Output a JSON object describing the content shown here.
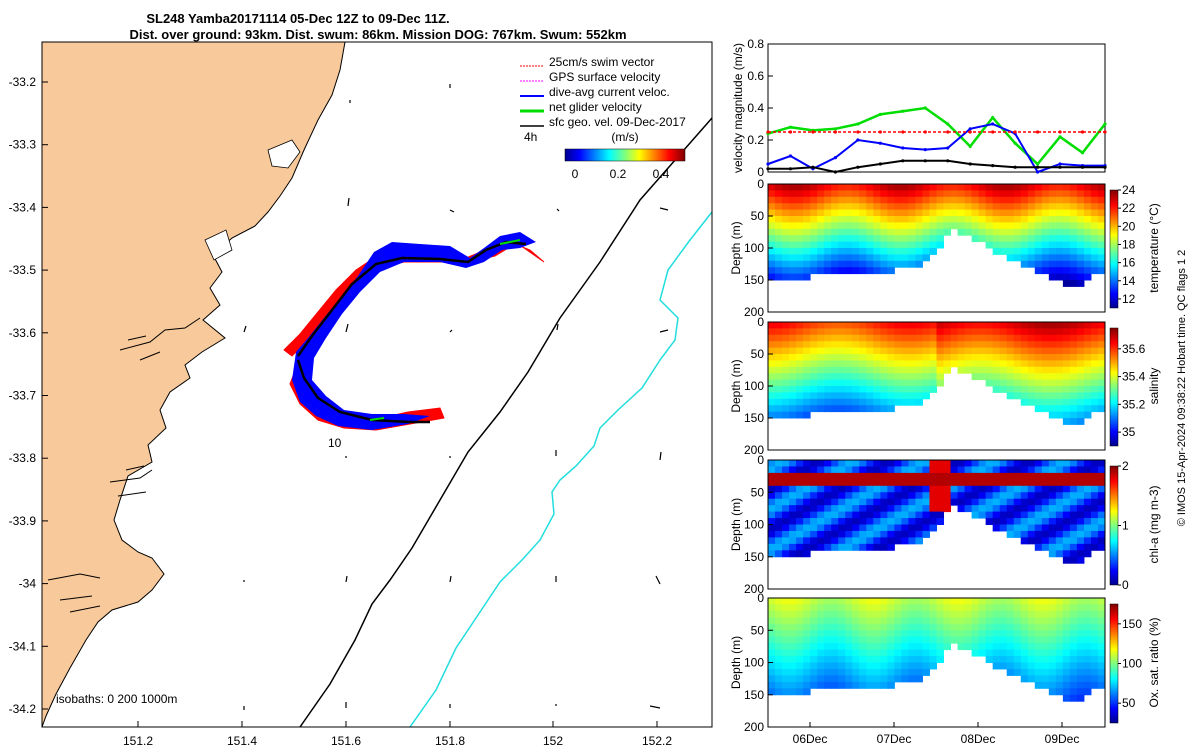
{
  "title_line1": "SL248 Yamba20171114 05-Dec 12Z to 09-Dec 11Z.",
  "title_line2": "Dist. over ground: 93km. Dist. swum: 86km. Mission DOG: 767km. Swum: 552km",
  "legend": {
    "items": [
      {
        "label": "25cm/s swim vector",
        "color": "#ff0000"
      },
      {
        "label": "GPS surface velocity",
        "color": "#ff00ff"
      },
      {
        "label": "dive-avg current veloc.",
        "color": "#0000ff"
      },
      {
        "label": "net glider velocity",
        "color": "#00dd00"
      },
      {
        "label": "sfc geo. vel. 09-Dec-2017",
        "color": "#000000"
      }
    ],
    "time_label": "4h"
  },
  "colorbar": {
    "label": "(m/s)",
    "ticks": [
      "0",
      "0.2",
      "0.4"
    ]
  },
  "map": {
    "xticks": [
      "151.2",
      "151.4",
      "151.6",
      "151.8",
      "152",
      "152.2"
    ],
    "yticks": [
      "-33.2",
      "-33.3",
      "-33.4",
      "-33.5",
      "-33.6",
      "-33.7",
      "-33.8",
      "-33.9",
      "-34",
      "-34.1",
      "-34.2"
    ],
    "track_label": "10",
    "isobaths_label": "isobaths: 0   200  1000m",
    "colors": {
      "land": "#f8c99a",
      "isobath_200": "#000000",
      "isobath_1000": "#22dddd"
    }
  },
  "chart_data": [
    {
      "type": "line",
      "title": "",
      "ylabel": "velocity magnitude (m/s)",
      "ylim": [
        0,
        0.8
      ],
      "yticks": [
        "0",
        "0.2",
        "0.4",
        "0.6",
        "0.8"
      ],
      "x": [
        0,
        0.25,
        0.5,
        0.75,
        1,
        1.25,
        1.5,
        1.75,
        2,
        2.25,
        2.5,
        2.75,
        3,
        3.25,
        3.5,
        3.75
      ],
      "series": [
        {
          "name": "net glider velocity",
          "values": [
            0.24,
            0.28,
            0.26,
            0.27,
            0.3,
            0.36,
            0.38,
            0.4,
            0.3,
            0.16,
            0.34,
            0.18,
            0.05,
            0.22,
            0.12,
            0.3
          ]
        },
        {
          "name": "dive-avg current veloc.",
          "values": [
            0.05,
            0.1,
            0.02,
            0.09,
            0.2,
            0.18,
            0.15,
            0.14,
            0.15,
            0.27,
            0.3,
            0.24,
            0.0,
            0.05,
            0.04,
            0.04
          ]
        },
        {
          "name": "sfc geo. vel.",
          "values": [
            0.02,
            0.02,
            0.03,
            0.0,
            0.03,
            0.05,
            0.07,
            0.07,
            0.07,
            0.05,
            0.04,
            0.03,
            0.03,
            0.03,
            0.03,
            0.03
          ]
        },
        {
          "name": "25cm/s swim vector",
          "values": [
            0.25,
            0.25,
            0.25,
            0.25,
            0.25,
            0.25,
            0.25,
            0.25,
            0.25,
            0.25,
            0.25,
            0.25,
            0.25,
            0.25,
            0.25,
            0.25
          ]
        }
      ]
    },
    {
      "type": "heatmap",
      "ylabel": "Depth (m)",
      "cbar_label": "temperature (°C)",
      "cbar_ticks": [
        "24",
        "22",
        "20",
        "18",
        "16",
        "14",
        "12"
      ],
      "ylim": [
        200,
        0
      ],
      "yticks": [
        "0",
        "50",
        "100",
        "150",
        "200"
      ],
      "clim": [
        11,
        24
      ]
    },
    {
      "type": "heatmap",
      "ylabel": "Depth (m)",
      "cbar_label": "salinity",
      "cbar_ticks": [
        "35.6",
        "35.4",
        "35.2",
        "35"
      ],
      "ylim": [
        200,
        0
      ],
      "yticks": [
        "0",
        "50",
        "100",
        "150",
        "200"
      ],
      "clim": [
        34.9,
        35.75
      ]
    },
    {
      "type": "heatmap",
      "ylabel": "Depth (m)",
      "cbar_label": "chl-a (mg m-3)",
      "cbar_ticks": [
        "2",
        "1",
        "0"
      ],
      "ylim": [
        200,
        0
      ],
      "yticks": [
        "0",
        "50",
        "100",
        "150",
        "200"
      ],
      "clim": [
        0,
        2
      ]
    },
    {
      "type": "heatmap",
      "ylabel": "Depth (m)",
      "cbar_label": "Ox. sat. ratio (%)",
      "cbar_ticks": [
        "150",
        "100",
        "50"
      ],
      "ylim": [
        200,
        0
      ],
      "yticks": [
        "0",
        "50",
        "100",
        "150",
        "200"
      ],
      "clim": [
        25,
        175
      ]
    }
  ],
  "time_axis": {
    "ticks": [
      "06Dec",
      "07Dec",
      "08Dec",
      "09Dec"
    ]
  },
  "credit": "© IMOS 15-Apr-2024 09:38:22 Hobart time. QC flags 1  2"
}
